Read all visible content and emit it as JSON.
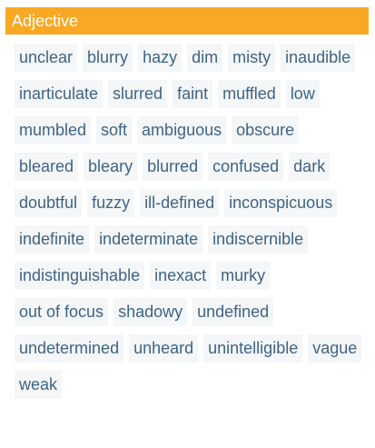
{
  "header": {
    "title": "Adjective"
  },
  "words": [
    "unclear",
    "blurry",
    "hazy",
    "dim",
    "misty",
    "inaudible",
    "inarticulate",
    "slurred",
    "faint",
    "muffled",
    "low",
    "mumbled",
    "soft",
    "ambiguous",
    "obscure",
    "bleared",
    "bleary",
    "blurred",
    "confused",
    "dark",
    "doubtful",
    "fuzzy",
    "ill-defined",
    "inconspicuous",
    "indefinite",
    "indeterminate",
    "indiscernible",
    "indistinguishable",
    "inexact",
    "murky",
    "out of focus",
    "shadowy",
    "undefined",
    "undetermined",
    "unheard",
    "unintelligible",
    "vague",
    "weak"
  ],
  "colors": {
    "header_bg": "#f9a825",
    "chip_bg": "#f4f6f7",
    "chip_text": "#3f6485"
  }
}
